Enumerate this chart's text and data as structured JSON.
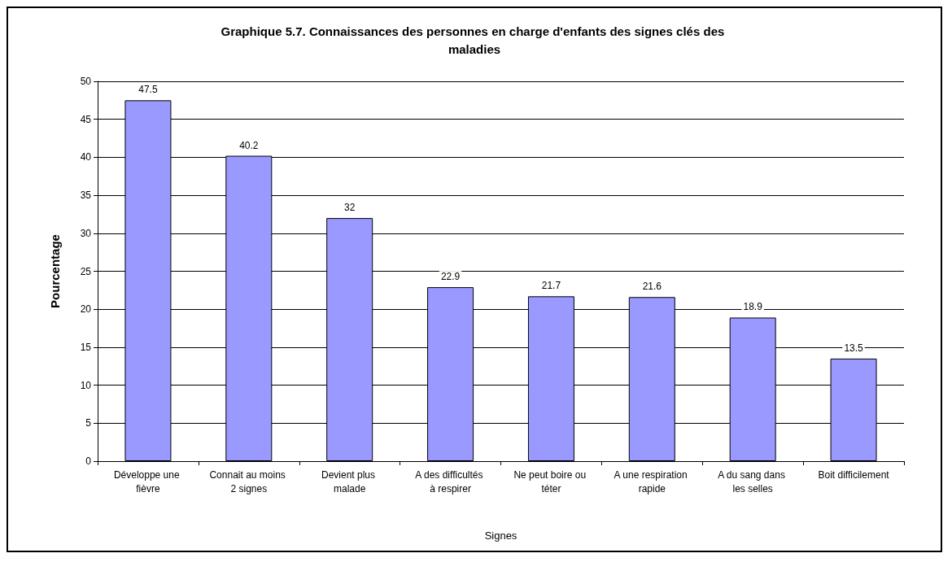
{
  "chart_data": {
    "type": "bar",
    "title": "Graphique 5.7. Connaissances des personnes en charge d'enfants des signes clés des maladies",
    "xlabel": "Signes",
    "ylabel": "Pourcentage",
    "categories": [
      "Développe une fièvre",
      "Connait au moins 2 signes",
      "Devient plus malade",
      "A des difficultés à respirer",
      "Ne peut boire ou téter",
      "A une respiration rapide",
      "A du sang dans les selles",
      "Boit difficilement"
    ],
    "values": [
      47.5,
      40.2,
      32,
      22.9,
      21.7,
      21.6,
      18.9,
      13.5
    ],
    "color": "#9999ff",
    "ylim": [
      0,
      50
    ],
    "yticks": [
      0,
      5,
      10,
      15,
      20,
      25,
      30,
      35,
      40,
      45,
      50
    ],
    "grid": "y",
    "data_labels": true
  }
}
